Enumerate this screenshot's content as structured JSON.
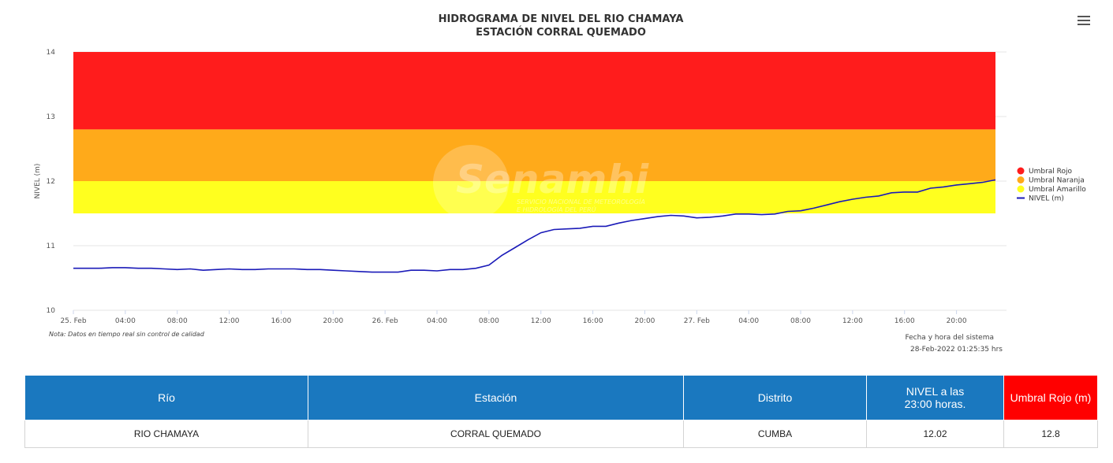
{
  "chart_data": {
    "type": "line",
    "title": "HIDROGRAMA DE NIVEL DEL RIO CHAMAYA",
    "subtitle": "ESTACIÓN CORRAL QUEMADO",
    "ylabel": "NIVEL (m)",
    "xlabel": "",
    "ylim": [
      10,
      14
    ],
    "y_ticks": [
      10,
      11,
      12,
      13,
      14
    ],
    "x_range_hours": [
      0,
      71
    ],
    "x_ticks": [
      {
        "h": 0,
        "label": "25. Feb"
      },
      {
        "h": 4,
        "label": "04:00"
      },
      {
        "h": 8,
        "label": "08:00"
      },
      {
        "h": 12,
        "label": "12:00"
      },
      {
        "h": 16,
        "label": "16:00"
      },
      {
        "h": 20,
        "label": "20:00"
      },
      {
        "h": 24,
        "label": "26. Feb"
      },
      {
        "h": 28,
        "label": "04:00"
      },
      {
        "h": 32,
        "label": "08:00"
      },
      {
        "h": 36,
        "label": "12:00"
      },
      {
        "h": 40,
        "label": "16:00"
      },
      {
        "h": 44,
        "label": "20:00"
      },
      {
        "h": 48,
        "label": "27. Feb"
      },
      {
        "h": 52,
        "label": "04:00"
      },
      {
        "h": 56,
        "label": "08:00"
      },
      {
        "h": 60,
        "label": "12:00"
      },
      {
        "h": 64,
        "label": "16:00"
      },
      {
        "h": 68,
        "label": "20:00"
      }
    ],
    "bands": [
      {
        "name": "Umbral Rojo",
        "from": 12.8,
        "to": 14,
        "color": "#ff1c1c"
      },
      {
        "name": "Umbral Naranja",
        "from": 12.0,
        "to": 12.8,
        "color": "#ffaa1a"
      },
      {
        "name": "Umbral Amarillo",
        "from": 11.5,
        "to": 12.0,
        "color": "#ffff1f"
      }
    ],
    "series": [
      {
        "name": "NIVEL (m)",
        "color": "#1a1ab8",
        "x": [
          0,
          1,
          2,
          3,
          4,
          5,
          6,
          7,
          8,
          9,
          10,
          11,
          12,
          13,
          14,
          15,
          16,
          17,
          18,
          19,
          20,
          21,
          22,
          23,
          24,
          25,
          26,
          27,
          28,
          29,
          30,
          31,
          32,
          33,
          34,
          35,
          36,
          37,
          38,
          39,
          40,
          41,
          42,
          43,
          44,
          45,
          46,
          47,
          48,
          49,
          50,
          51,
          52,
          53,
          54,
          55,
          56,
          57,
          58,
          59,
          60,
          61,
          62,
          63,
          64,
          65,
          66,
          67,
          68,
          69,
          70,
          71
        ],
        "y": [
          10.65,
          10.65,
          10.65,
          10.66,
          10.66,
          10.65,
          10.65,
          10.64,
          10.63,
          10.64,
          10.62,
          10.63,
          10.64,
          10.63,
          10.63,
          10.64,
          10.64,
          10.64,
          10.63,
          10.63,
          10.62,
          10.61,
          10.6,
          10.59,
          10.59,
          10.59,
          10.62,
          10.62,
          10.61,
          10.63,
          10.63,
          10.65,
          10.7,
          10.85,
          10.97,
          11.09,
          11.2,
          11.25,
          11.26,
          11.27,
          11.3,
          11.3,
          11.35,
          11.39,
          11.42,
          11.45,
          11.47,
          11.46,
          11.43,
          11.44,
          11.46,
          11.49,
          11.49,
          11.48,
          11.49,
          11.53,
          11.54,
          11.58,
          11.63,
          11.68,
          11.72,
          11.75,
          11.77,
          11.82,
          11.83,
          11.83,
          11.89,
          11.91,
          11.94,
          11.96,
          11.98,
          12.02
        ]
      }
    ],
    "legend": [
      "Umbral Rojo",
      "Umbral Naranja",
      "Umbral Amarillo",
      "NIVEL (m)"
    ],
    "legend_position": "right",
    "grid": true,
    "note": "Nota: Datos en tiempo real sin control de calidad",
    "timestamp_label": "Fecha y hora del sistema",
    "timestamp": "28-Feb-2022 01:25:35 hrs",
    "watermark": {
      "brand": "Senamhi",
      "line1": "SERVICIO NACIONAL DE METEOROLOGÍA",
      "line2": "E HIDROLOGÍA DEL PERÚ"
    }
  },
  "table": {
    "headers": {
      "rio": "Río",
      "estacion": "Estación",
      "distrito": "Distrito",
      "nivel_line1": "NIVEL a las",
      "nivel_line2": "23:00 horas.",
      "umbral": "Umbral Rojo (m)"
    },
    "row": {
      "rio": "RIO CHAMAYA",
      "estacion": "CORRAL QUEMADO",
      "distrito": "CUMBA",
      "nivel": "12.02",
      "umbral": "12.8"
    }
  }
}
